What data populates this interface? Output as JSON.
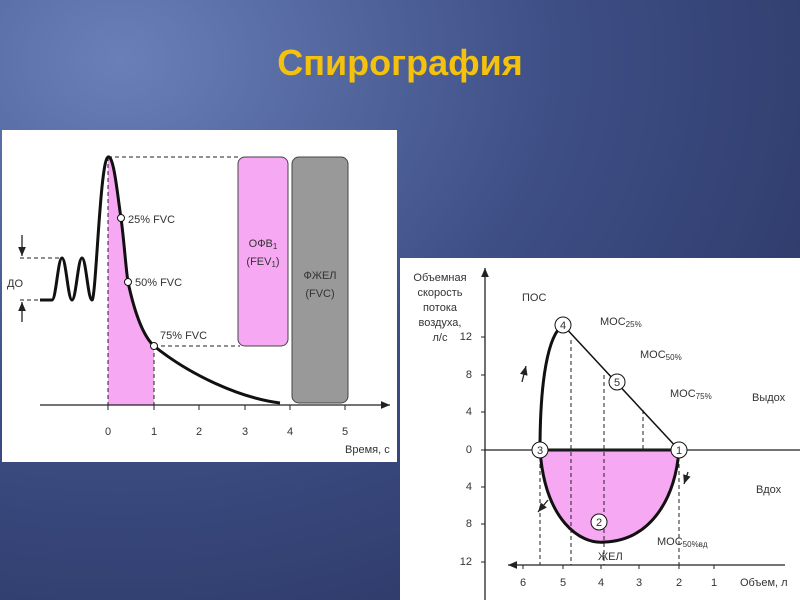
{
  "title": "Спирография",
  "left": {
    "labels": {
      "p25": "25% FVC",
      "p50": "50% FVC",
      "p75": "75% FVC",
      "do": "ДО"
    },
    "ofv": {
      "main": "ОФВ",
      "sub": "1"
    },
    "fev": {
      "open": "(FEV",
      "sub": "1",
      "close": ")"
    },
    "fzhel": "ФЖЕЛ",
    "fvc": "(FVC)",
    "xticks": [
      "0",
      "1",
      "2",
      "3",
      "4",
      "5"
    ],
    "xlabel": "Время, с"
  },
  "right": {
    "ylabel": [
      "Объемная",
      "скорость",
      "потока",
      "воздуха,",
      "л/с"
    ],
    "yticks": [
      "12",
      "8",
      "4",
      "0",
      "4",
      "8",
      "12"
    ],
    "xticks": [
      "6",
      "5",
      "4",
      "3",
      "2",
      "1"
    ],
    "xlabel": "Объем, л",
    "points": [
      "1",
      "2",
      "3",
      "4",
      "5"
    ],
    "pos": "ПОС",
    "mos25": {
      "main": "МОС",
      "sub": "25%"
    },
    "mos50": {
      "main": "МОС",
      "sub": "50%"
    },
    "mos75": {
      "main": "МОС",
      "sub": "75%"
    },
    "mos50vd": {
      "main": "МОС",
      "sub": "50%вд"
    },
    "zhel": "ЖЕЛ",
    "vydoh": "Выдох",
    "vdoh": "Вдох"
  }
}
